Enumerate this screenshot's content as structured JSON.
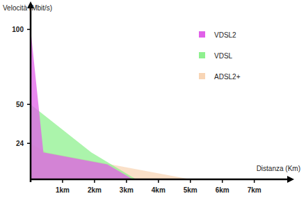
{
  "chart_data": {
    "type": "area",
    "y_label": "Velocità (Mbit/s)",
    "x_label": "Distanza (Km)",
    "series": [
      {
        "name": "VDSL2",
        "color": "#e060e8",
        "x": [
          0,
          0.4,
          2.4,
          3.2
        ],
        "values": [
          100,
          18,
          10,
          0
        ]
      },
      {
        "name": "VDSL",
        "color": "#8ff08f",
        "x": [
          0,
          1.9,
          3.3
        ],
        "values": [
          50,
          18,
          0
        ]
      },
      {
        "name": "ADSL2+",
        "color": "#f8d5b5",
        "x": [
          0,
          0.5,
          5
        ],
        "values": [
          24,
          18,
          0
        ]
      }
    ],
    "xlim": [
      0,
      7.9
    ],
    "xticks": [
      {
        "value": 1,
        "label": "1km"
      },
      {
        "value": 2,
        "label": "2km"
      },
      {
        "value": 3,
        "label": "3km"
      },
      {
        "value": 4,
        "label": "4km"
      },
      {
        "value": 5,
        "label": "5km"
      },
      {
        "value": 6,
        "label": "6km"
      },
      {
        "value": 7,
        "label": "7km"
      }
    ],
    "ylim": [
      0,
      115
    ],
    "yticks": [
      24,
      50,
      100
    ],
    "grid": false,
    "legend": "top-right"
  }
}
